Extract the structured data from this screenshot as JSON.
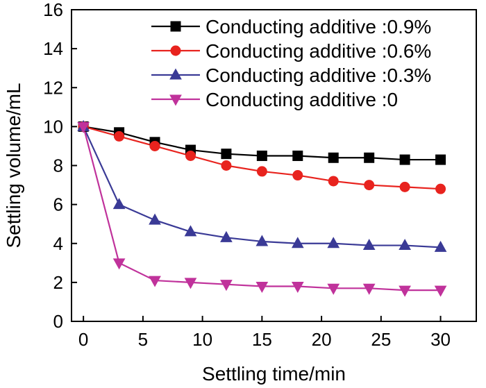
{
  "chart_data": {
    "type": "line",
    "title": "",
    "xlabel": "Settling time/min",
    "ylabel": "Settling volume/mL",
    "xlim": [
      -1,
      33
    ],
    "ylim": [
      0,
      16
    ],
    "xticks": [
      0,
      5,
      10,
      15,
      20,
      25,
      30
    ],
    "yticks": [
      0,
      2,
      4,
      6,
      8,
      10,
      12,
      14,
      16
    ],
    "x": [
      0,
      3,
      6,
      9,
      12,
      15,
      18,
      21,
      24,
      27,
      30
    ],
    "legend_position": "top-right",
    "grid": false,
    "series": [
      {
        "name": "Conducting additive :0.9%",
        "color": "#000000",
        "marker": "square",
        "values": [
          10,
          9.7,
          9.2,
          8.8,
          8.6,
          8.5,
          8.5,
          8.4,
          8.4,
          8.3,
          8.3
        ]
      },
      {
        "name": "Conducting additive :0.6%",
        "color": "#e8231e",
        "marker": "circle",
        "values": [
          10,
          9.5,
          9.0,
          8.5,
          8.0,
          7.7,
          7.5,
          7.2,
          7.0,
          6.9,
          6.8
        ]
      },
      {
        "name": "Conducting additive :0.3%",
        "color": "#3a3a96",
        "marker": "triangle-up",
        "values": [
          10,
          6.0,
          5.2,
          4.6,
          4.3,
          4.1,
          4.0,
          4.0,
          3.9,
          3.9,
          3.8
        ]
      },
      {
        "name": "Conducting additive :0",
        "color": "#c0329b",
        "marker": "triangle-down",
        "values": [
          10,
          3.0,
          2.1,
          2.0,
          1.9,
          1.8,
          1.8,
          1.7,
          1.7,
          1.6,
          1.6
        ]
      }
    ]
  }
}
